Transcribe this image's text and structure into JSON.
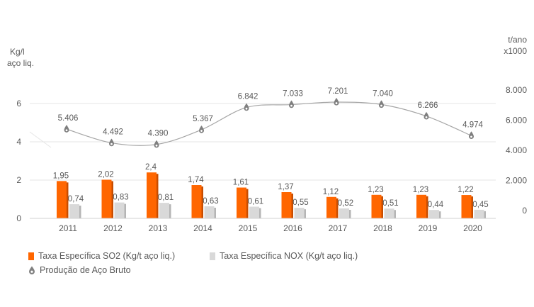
{
  "chart_data": {
    "type": "bar",
    "categories": [
      "2011",
      "2012",
      "2013",
      "2014",
      "2015",
      "2016",
      "2017",
      "2018",
      "2019",
      "2020"
    ],
    "series": [
      {
        "name": "Taxa Específica SO2 (Kg/t aço liq.)",
        "kind": "bar",
        "axis": "left",
        "values": [
          1.95,
          2.02,
          2.4,
          1.74,
          1.61,
          1.37,
          1.12,
          1.23,
          1.23,
          1.22
        ],
        "labels": [
          "1,95",
          "2,02",
          "2,4",
          "1,74",
          "1,61",
          "1,37",
          "1,12",
          "1,23",
          "1,23",
          "1,22"
        ],
        "color": "#ff6600"
      },
      {
        "name": "Taxa Específica NOX (Kg/t aço liq.)",
        "kind": "bar",
        "axis": "left",
        "values": [
          0.74,
          0.83,
          0.81,
          0.63,
          0.61,
          0.55,
          0.52,
          0.51,
          0.44,
          0.45
        ],
        "labels": [
          "0,74",
          "0,83",
          "0,81",
          "0,63",
          "0,61",
          "0,55",
          "0,52",
          "0,51",
          "0,44",
          "0,45"
        ],
        "color": "#d9d9d9"
      },
      {
        "name": "Produção de Aço Bruto",
        "kind": "line",
        "axis": "right",
        "values": [
          5406,
          4492,
          4390,
          5367,
          6842,
          7033,
          7201,
          7040,
          6266,
          4974
        ],
        "labels": [
          "5.406",
          "4.492",
          "4.390",
          "5.367",
          "6.842",
          "7.033",
          "7.201",
          "7.040",
          "6.266",
          "4.974"
        ],
        "color": "#808080"
      }
    ],
    "left_axis": {
      "title_line1": "Kg/l",
      "title_line2": "aço liq.",
      "ticks": [
        "0",
        "2",
        "4",
        "6"
      ],
      "tick_values": [
        0,
        2,
        4,
        6
      ]
    },
    "right_axis": {
      "title_line1": "t/ano",
      "title_line2": "x1000",
      "ticks": [
        "0",
        "2.000",
        "4.000",
        "6.000",
        "8.000"
      ],
      "tick_values": [
        0,
        2000,
        4000,
        6000,
        8000
      ]
    },
    "grid": true,
    "legend_position": "bottom-left"
  }
}
